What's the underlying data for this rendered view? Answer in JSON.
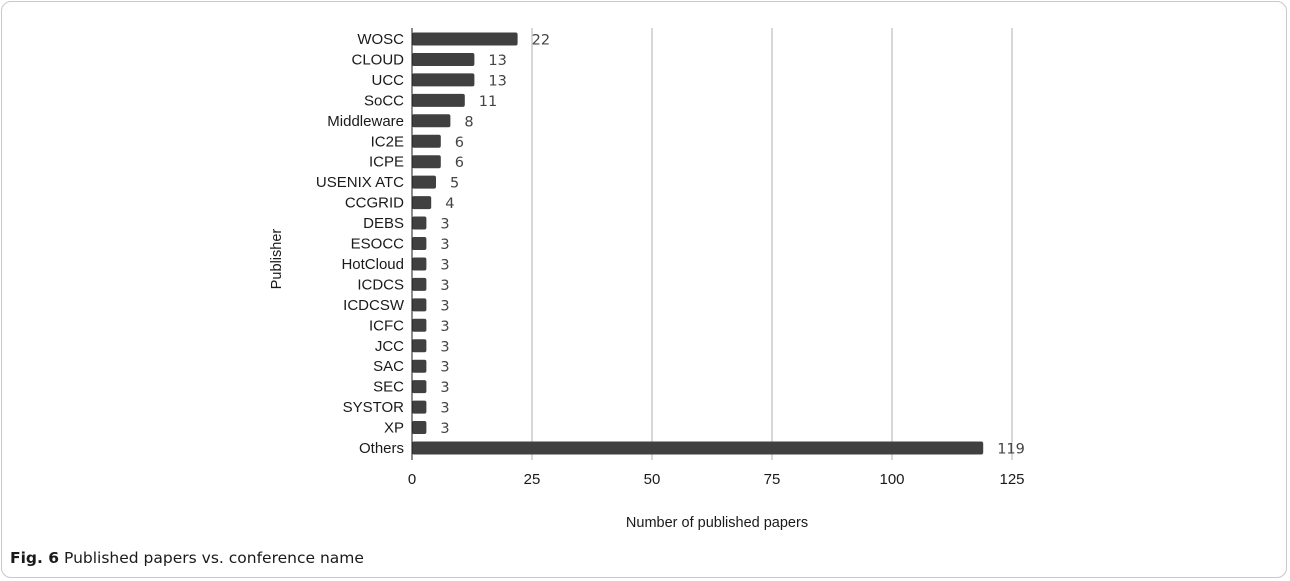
{
  "chart_data": {
    "type": "bar",
    "orientation": "horizontal",
    "categories": [
      "WOSC",
      "CLOUD",
      "UCC",
      "SoCC",
      "Middleware",
      "IC2E",
      "ICPE",
      "USENIX ATC",
      "CCGRID",
      "DEBS",
      "ESOCC",
      "HotCloud",
      "ICDCS",
      "ICDCSW",
      "ICFC",
      "JCC",
      "SAC",
      "SEC",
      "SYSTOR",
      "XP",
      "Others"
    ],
    "values": [
      22,
      13,
      13,
      11,
      8,
      6,
      6,
      5,
      4,
      3,
      3,
      3,
      3,
      3,
      3,
      3,
      3,
      3,
      3,
      3,
      119
    ],
    "xlabel": "Number of published papers",
    "ylabel": "Publisher",
    "xlim": [
      0,
      125
    ],
    "xticks": [
      0,
      25,
      50,
      75,
      100,
      125
    ],
    "grid": "vertical",
    "bar_color": "#404040",
    "grid_color": "#bfbfbf"
  },
  "caption": {
    "label": "Fig. 6",
    "text": " Published papers vs. conference name"
  }
}
